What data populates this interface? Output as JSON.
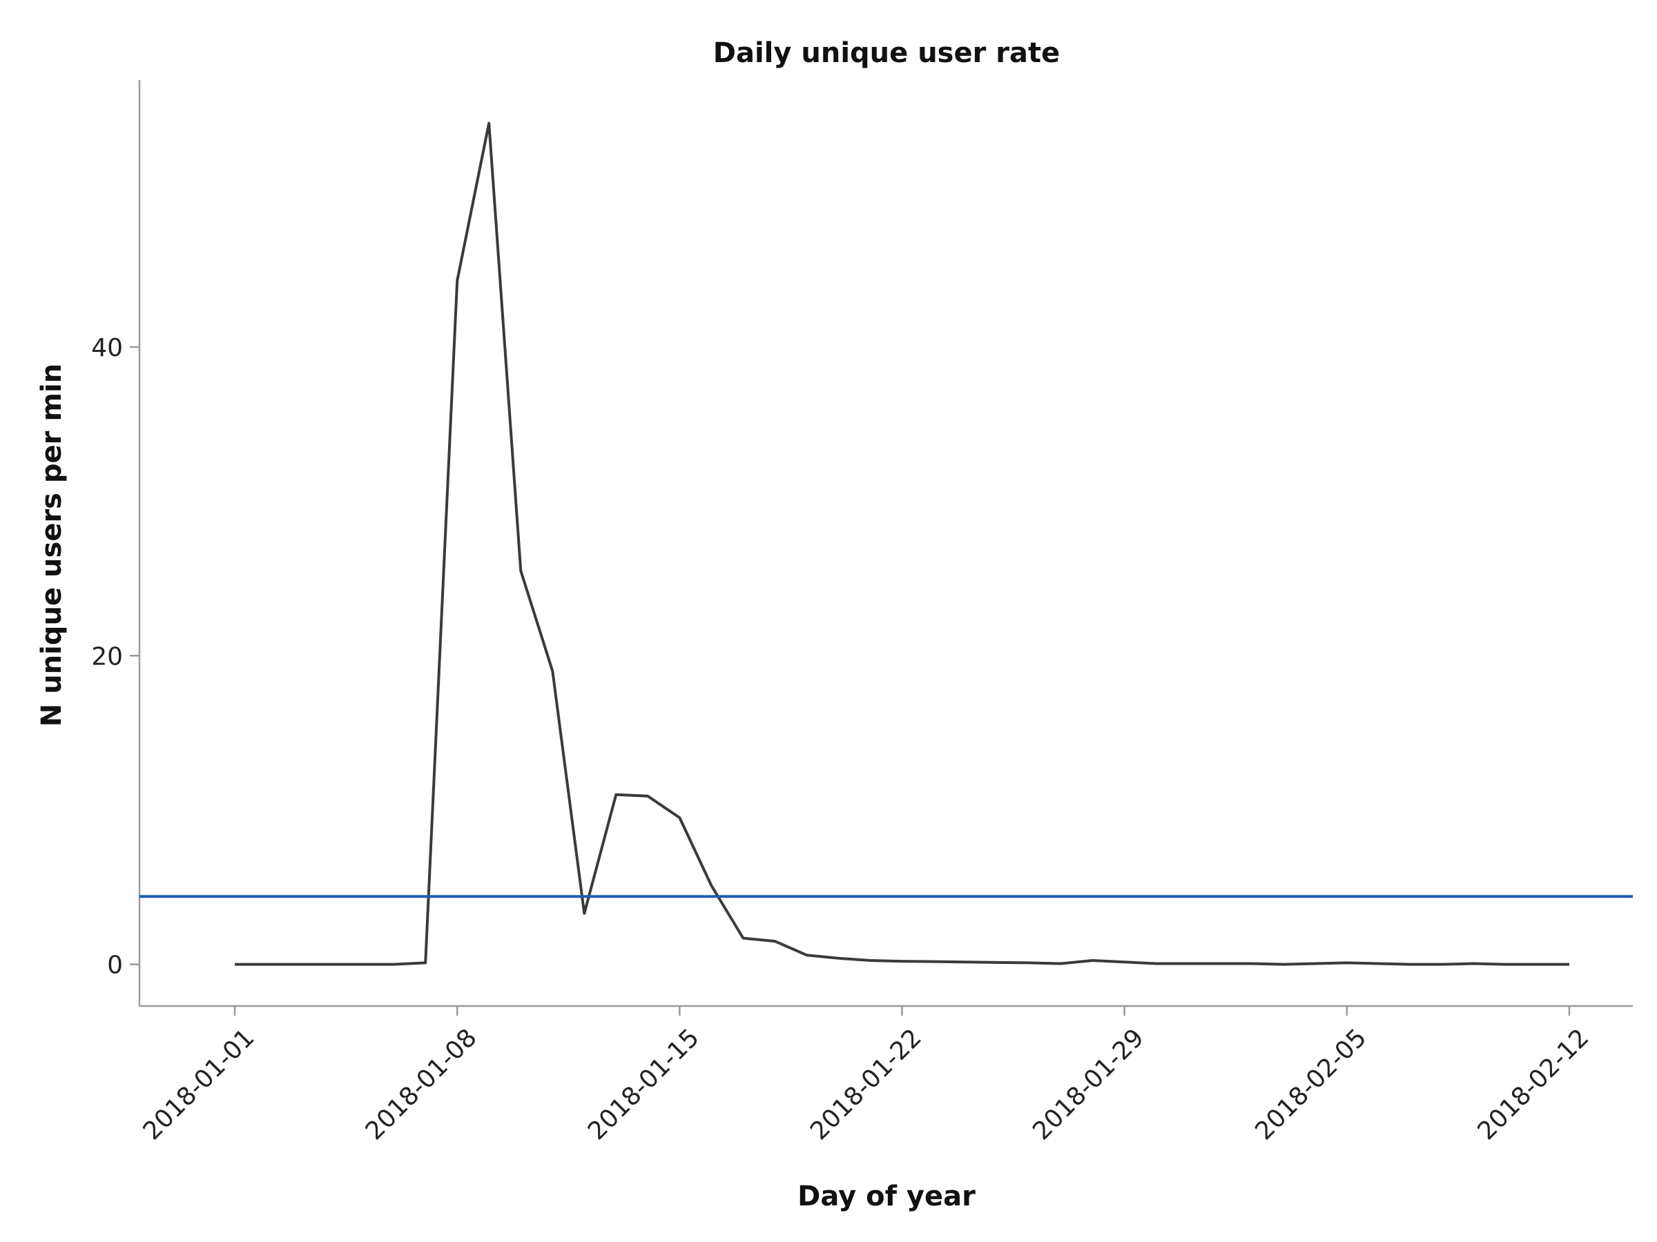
{
  "chart_data": {
    "type": "line",
    "title": "Daily unique user rate",
    "xlabel": "Day of year",
    "ylabel": "N unique users per min",
    "x_tick_labels": [
      "2018-01-01",
      "2018-01-08",
      "2018-01-15",
      "2018-01-22",
      "2018-01-29",
      "2018-02-05",
      "2018-02-12"
    ],
    "y_ticks": [
      0,
      20,
      40
    ],
    "x_range": [
      "2017-12-29",
      "2018-02-14"
    ],
    "ylim": [
      -2.7,
      57.3
    ],
    "grid": false,
    "series": [
      {
        "color": "#3a3a3a",
        "x": [
          "2018-01-01",
          "2018-01-02",
          "2018-01-03",
          "2018-01-04",
          "2018-01-05",
          "2018-01-06",
          "2018-01-07",
          "2018-01-08",
          "2018-01-09",
          "2018-01-10",
          "2018-01-11",
          "2018-01-12",
          "2018-01-13",
          "2018-01-14",
          "2018-01-15",
          "2018-01-16",
          "2018-01-17",
          "2018-01-18",
          "2018-01-19",
          "2018-01-20",
          "2018-01-21",
          "2018-01-22",
          "2018-01-23",
          "2018-01-24",
          "2018-01-25",
          "2018-01-26",
          "2018-01-27",
          "2018-01-28",
          "2018-01-29",
          "2018-01-30",
          "2018-01-31",
          "2018-02-01",
          "2018-02-02",
          "2018-02-03",
          "2018-02-04",
          "2018-02-05",
          "2018-02-06",
          "2018-02-07",
          "2018-02-08",
          "2018-02-09",
          "2018-02-10",
          "2018-02-11",
          "2018-02-12"
        ],
        "values": [
          0.0,
          0.0,
          0.0,
          0.0,
          0.0,
          0.0,
          0.1,
          44.3,
          54.5,
          25.5,
          19.0,
          3.3,
          11.0,
          10.9,
          9.5,
          5.1,
          1.7,
          1.5,
          0.6,
          0.4,
          0.25,
          0.2,
          0.18,
          0.15,
          0.12,
          0.1,
          0.05,
          0.25,
          0.15,
          0.05,
          0.05,
          0.05,
          0.05,
          0.0,
          0.05,
          0.1,
          0.05,
          0.0,
          0.0,
          0.05,
          0.0,
          0.0,
          0.0
        ]
      }
    ],
    "reference_line": {
      "y": 4.4,
      "color": "#1f5bb5"
    }
  }
}
